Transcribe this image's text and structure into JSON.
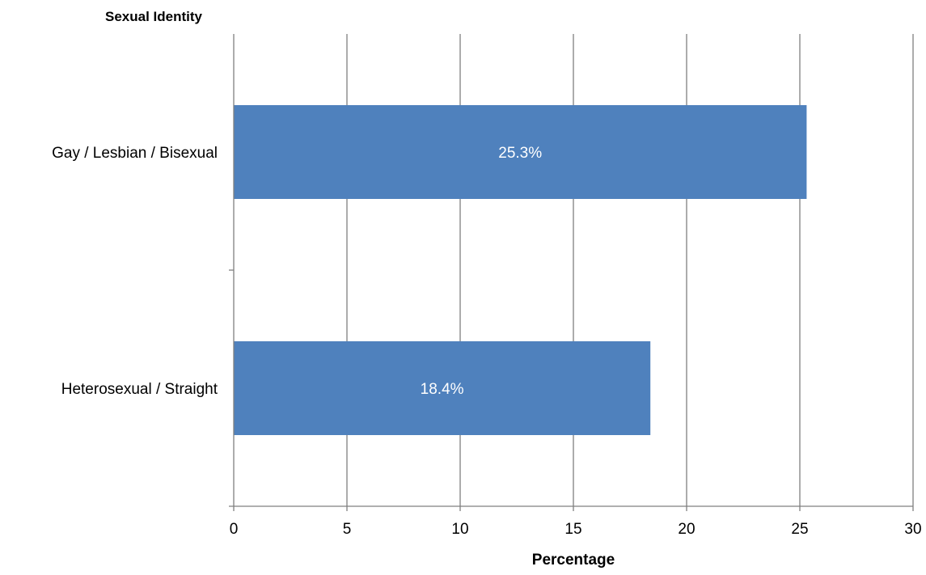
{
  "colors": {
    "bar": "#4f81bd",
    "grid": "#808080",
    "axis": "#808080",
    "data_label": "#ffffff",
    "background": "#ffffff"
  },
  "chart_data": {
    "type": "bar",
    "orientation": "horizontal",
    "title": "",
    "ylabel": "Sexual Identity",
    "xlabel": "Percentage",
    "categories": [
      "Gay / Lesbian / Bisexual",
      "Heterosexual / Straight"
    ],
    "values": [
      25.3,
      18.4
    ],
    "data_labels": [
      "25.3%",
      "18.4%"
    ],
    "xlim": [
      0,
      30
    ],
    "x_ticks": [
      0,
      5,
      10,
      15,
      20,
      25,
      30
    ],
    "grid": "vertical",
    "legend": "none"
  }
}
